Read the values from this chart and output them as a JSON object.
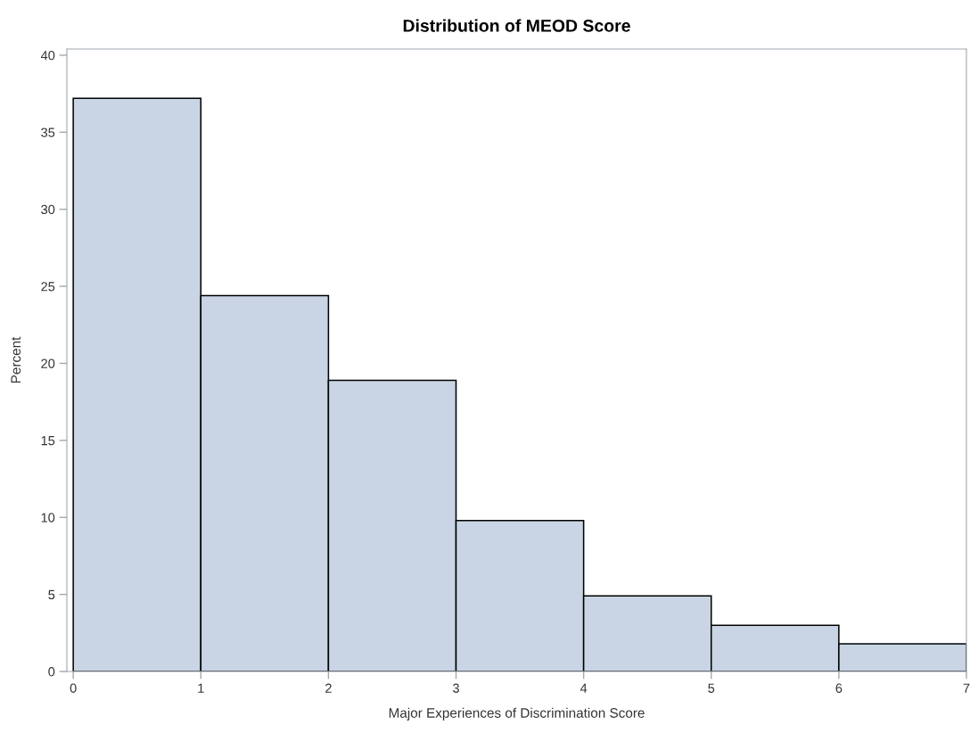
{
  "chart_data": {
    "type": "histogram",
    "title": "Distribution of MEOD Score",
    "xlabel": "Major Experiences of Discrimination Score",
    "ylabel": "Percent",
    "bins": [
      0,
      1,
      2,
      3,
      4,
      5,
      6,
      7
    ],
    "values": [
      37.2,
      24.4,
      18.9,
      9.8,
      4.9,
      3.0,
      1.8
    ],
    "color": "#c9d5e5",
    "xlim": [
      -0.05,
      7
    ],
    "xticks": [
      0,
      1,
      2,
      3,
      4,
      5,
      6,
      7
    ],
    "ylim": [
      0,
      40.4
    ],
    "yticks": [
      0,
      5,
      10,
      15,
      20,
      25,
      30,
      35,
      40
    ],
    "grid": false,
    "legend": false
  }
}
